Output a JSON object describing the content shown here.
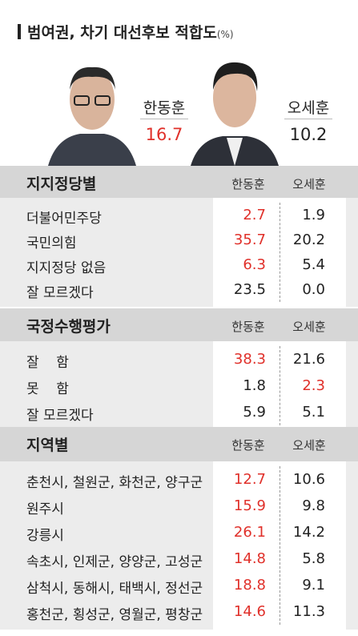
{
  "title": "범여권, 차기 대선후보 적합도",
  "title_unit": "(%)",
  "candidates": [
    {
      "name": "한동훈",
      "value": "16.7",
      "color": "#e0302a"
    },
    {
      "name": "오세훈",
      "value": "10.2",
      "color": "#222222"
    }
  ],
  "sections": [
    {
      "title": "지지정당별",
      "columns": [
        "한동훈",
        "오세훈"
      ],
      "rows": [
        {
          "label": "더불어민주당",
          "values": [
            "2.7",
            "1.9"
          ],
          "colors": [
            "#e0302a",
            "#222222"
          ]
        },
        {
          "label": "국민의힘",
          "values": [
            "35.7",
            "20.2"
          ],
          "colors": [
            "#e0302a",
            "#222222"
          ]
        },
        {
          "label": "지지정당 없음",
          "values": [
            "6.3",
            "5.4"
          ],
          "colors": [
            "#e0302a",
            "#222222"
          ]
        },
        {
          "label": "잘 모르겠다",
          "values": [
            "23.5",
            "0.0"
          ],
          "colors": [
            "#222222",
            "#222222"
          ]
        }
      ]
    },
    {
      "title": "국정수행평가",
      "columns": [
        "한동훈",
        "오세훈"
      ],
      "rows": [
        {
          "label": "잘    함",
          "values": [
            "38.3",
            "21.6"
          ],
          "colors": [
            "#e0302a",
            "#222222"
          ]
        },
        {
          "label": "못    함",
          "values": [
            "1.8",
            "2.3"
          ],
          "colors": [
            "#222222",
            "#e0302a"
          ]
        },
        {
          "label": "잘 모르겠다",
          "values": [
            "5.9",
            "5.1"
          ],
          "colors": [
            "#222222",
            "#222222"
          ]
        }
      ]
    },
    {
      "title": "지역별",
      "columns": [
        "한동훈",
        "오세훈"
      ],
      "rows": [
        {
          "label": "춘천시, 철원군, 화천군, 양구군",
          "values": [
            "12.7",
            "10.6"
          ],
          "colors": [
            "#e0302a",
            "#222222"
          ]
        },
        {
          "label": "원주시",
          "values": [
            "15.9",
            "9.8"
          ],
          "colors": [
            "#e0302a",
            "#222222"
          ]
        },
        {
          "label": "강릉시",
          "values": [
            "26.1",
            "14.2"
          ],
          "colors": [
            "#e0302a",
            "#222222"
          ]
        },
        {
          "label": "속초시, 인제군, 양양군, 고성군",
          "values": [
            "14.8",
            "5.8"
          ],
          "colors": [
            "#e0302a",
            "#222222"
          ]
        },
        {
          "label": "삼척시, 동해시, 태백시, 정선군",
          "values": [
            "18.8",
            "9.1"
          ],
          "colors": [
            "#e0302a",
            "#222222"
          ]
        },
        {
          "label": "홍천군, 횡성군, 영월군, 평창군",
          "values": [
            "14.6",
            "11.3"
          ],
          "colors": [
            "#e0302a",
            "#222222"
          ]
        }
      ]
    }
  ]
}
